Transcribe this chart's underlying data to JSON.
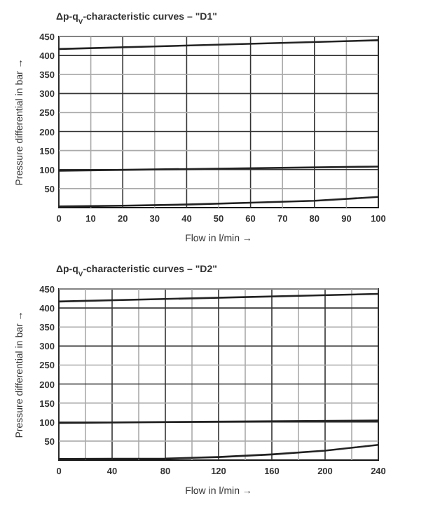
{
  "chart_data": [
    {
      "type": "line",
      "title": "Δp-q$_{V}$-characteristic curves – \"D1\"",
      "xlabel": "Flow in l/min →",
      "ylabel": "Pressure differential in bar →",
      "xlim": [
        0,
        100
      ],
      "xticks": [
        0,
        10,
        20,
        30,
        40,
        50,
        60,
        70,
        80,
        90,
        100
      ],
      "ylim": [
        0,
        450
      ],
      "yticks": [
        50,
        100,
        150,
        200,
        250,
        300,
        350,
        400,
        450
      ],
      "grid": true,
      "marker": "none",
      "line_style": "solid",
      "series": [
        {
          "color": "#222222",
          "x": [
            0,
            100
          ],
          "values": [
            417,
            440
          ]
        },
        {
          "color": "#222222",
          "x": [
            0,
            100
          ],
          "values": [
            97,
            108
          ]
        },
        {
          "color": "#222222",
          "x": [
            0,
            20,
            40,
            60,
            80,
            100
          ],
          "values": [
            3,
            5,
            8,
            13,
            18,
            28
          ]
        }
      ]
    },
    {
      "type": "line",
      "title": "Δp-q$_{V}$-characteristic curves – \"D2\"",
      "xlabel": "Flow in l/min →",
      "ylabel": "Pressure differential in bar →",
      "xlim": [
        0,
        240
      ],
      "xticks": [
        0,
        {
          "value": 20,
          "label": null
        },
        40,
        {
          "value": 60,
          "label": null
        },
        80,
        {
          "value": 100,
          "label": null
        },
        120,
        {
          "value": 140,
          "label": null
        },
        160,
        {
          "value": 180,
          "label": null
        },
        200,
        {
          "value": 220,
          "label": null
        },
        240
      ],
      "ylim": [
        0,
        450
      ],
      "yticks": [
        50,
        100,
        150,
        200,
        250,
        300,
        350,
        400,
        450
      ],
      "grid": true,
      "marker": "none",
      "line_style": "solid",
      "series": [
        {
          "color": "#222222",
          "x": [
            0,
            240
          ],
          "values": [
            417,
            437
          ]
        },
        {
          "color": "#222222",
          "x": [
            0,
            240
          ],
          "values": [
            98,
            104
          ]
        },
        {
          "color": "#222222",
          "x": [
            0,
            80,
            120,
            160,
            200,
            240
          ],
          "values": [
            3,
            4,
            8,
            15,
            25,
            40
          ]
        }
      ]
    }
  ]
}
